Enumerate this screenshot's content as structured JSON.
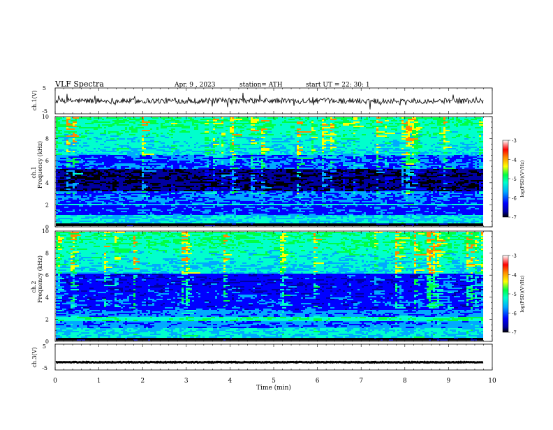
{
  "header": {
    "title": "VLF  Spectra",
    "date": "Apr. 9  , 2023",
    "station": "station= ATH",
    "start": "start  UT  =   22: 30: 1"
  },
  "colors": {
    "colormap": [
      "#000000",
      "#0000a0",
      "#0000ff",
      "#00aaff",
      "#00ffcc",
      "#00ff44",
      "#ffff00",
      "#ff8800",
      "#ff0000",
      "#ffffff"
    ]
  },
  "chart_data": [
    {
      "type": "line",
      "name": "ch1-waveform",
      "ylabel": "ch.1(V)",
      "ylim": [
        -5,
        5
      ],
      "yticks": [
        "5",
        "-5"
      ],
      "baseline": 0
    },
    {
      "type": "heatmap",
      "name": "ch1-spectrogram",
      "ylabel_channel": "ch.1",
      "ylabel": "Frequency  (kHz)",
      "ylim": [
        0,
        10
      ],
      "yticks": [
        "0",
        "2",
        "4",
        "6",
        "8",
        "10"
      ],
      "colorbar": {
        "label": "log(PSD)(V²/Hz)",
        "range": [
          -7,
          -3
        ],
        "ticks": [
          "-3",
          "-4",
          "-5",
          "-6",
          "-7"
        ]
      }
    },
    {
      "type": "heatmap",
      "name": "ch2-spectrogram",
      "ylabel_channel": "ch.2",
      "ylabel": "Frequency  (kHz)",
      "ylim": [
        0,
        10
      ],
      "yticks": [
        "0",
        "2",
        "4",
        "6",
        "8",
        "10"
      ],
      "colorbar": {
        "label": "log(PSD)(V²/Hz)",
        "range": [
          -7,
          -3
        ],
        "ticks": [
          "-3",
          "-4",
          "-5",
          "-6",
          "-7"
        ]
      }
    },
    {
      "type": "line",
      "name": "ch3-waveform",
      "ylabel": "ch.3(V)",
      "ylim": [
        -5,
        5
      ],
      "yticks": [
        "5",
        "-5"
      ],
      "baseline": -2
    }
  ],
  "xaxis": {
    "label": "Time  (min)",
    "xlim": [
      0,
      10
    ],
    "data_end": 9.8,
    "ticks": [
      "0",
      "1",
      "2",
      "3",
      "4",
      "5",
      "6",
      "7",
      "8",
      "9",
      "10"
    ]
  }
}
